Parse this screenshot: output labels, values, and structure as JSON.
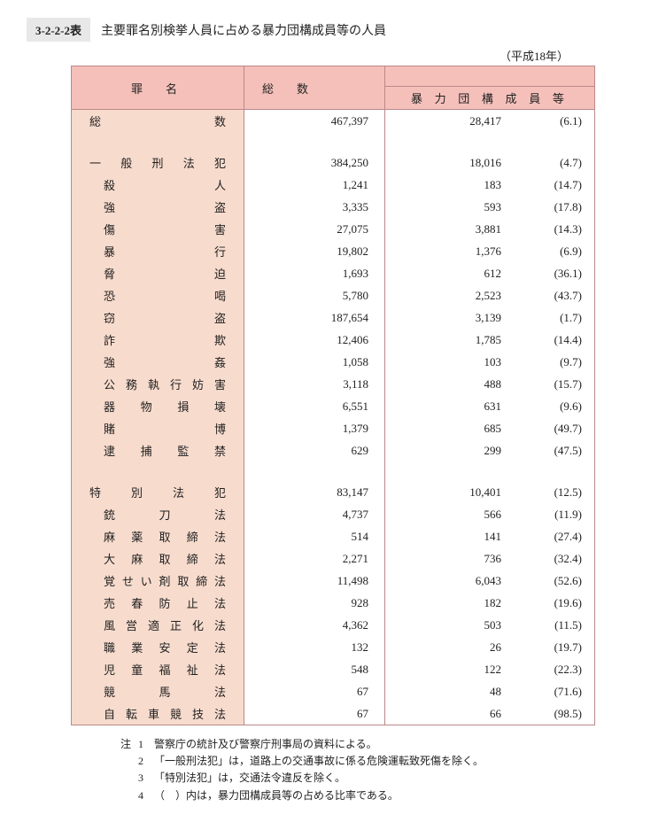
{
  "title_tag": "3-2-2-2表",
  "title_text": "主要罪名別検挙人員に占める暴力団構成員等の人員",
  "year_note": "（平成18年）",
  "header": {
    "crime": "罪名",
    "total_group": "総数",
    "gang": "暴 力 団 構 成 員 等"
  },
  "colors": {
    "header_bg": "#f5c0ba",
    "label_bg": "#f7dbcd",
    "border": "#b88"
  },
  "rows": [
    {
      "type": "data",
      "indent": 0,
      "label": "総数",
      "total": "467,397",
      "gang": "28,417",
      "pct": "(6.1)"
    },
    {
      "type": "spacer"
    },
    {
      "type": "data",
      "indent": 0,
      "label": "一般刑法犯",
      "total": "384,250",
      "gang": "18,016",
      "pct": "(4.7)"
    },
    {
      "type": "data",
      "indent": 1,
      "label": "殺人",
      "total": "1,241",
      "gang": "183",
      "pct": "(14.7)"
    },
    {
      "type": "data",
      "indent": 1,
      "label": "強盗",
      "total": "3,335",
      "gang": "593",
      "pct": "(17.8)"
    },
    {
      "type": "data",
      "indent": 1,
      "label": "傷害",
      "total": "27,075",
      "gang": "3,881",
      "pct": "(14.3)"
    },
    {
      "type": "data",
      "indent": 1,
      "label": "暴行",
      "total": "19,802",
      "gang": "1,376",
      "pct": "(6.9)"
    },
    {
      "type": "data",
      "indent": 1,
      "label": "脅迫",
      "total": "1,693",
      "gang": "612",
      "pct": "(36.1)"
    },
    {
      "type": "data",
      "indent": 1,
      "label": "恐喝",
      "total": "5,780",
      "gang": "2,523",
      "pct": "(43.7)"
    },
    {
      "type": "data",
      "indent": 1,
      "label": "窃盗",
      "total": "187,654",
      "gang": "3,139",
      "pct": "(1.7)"
    },
    {
      "type": "data",
      "indent": 1,
      "label": "詐欺",
      "total": "12,406",
      "gang": "1,785",
      "pct": "(14.4)"
    },
    {
      "type": "data",
      "indent": 1,
      "label": "強姦",
      "total": "1,058",
      "gang": "103",
      "pct": "(9.7)"
    },
    {
      "type": "data",
      "indent": 1,
      "label": "公務執行妨害",
      "total": "3,118",
      "gang": "488",
      "pct": "(15.7)"
    },
    {
      "type": "data",
      "indent": 1,
      "label": "器物損壊",
      "total": "6,551",
      "gang": "631",
      "pct": "(9.6)"
    },
    {
      "type": "data",
      "indent": 1,
      "label": "賭博",
      "total": "1,379",
      "gang": "685",
      "pct": "(49.7)"
    },
    {
      "type": "data",
      "indent": 1,
      "label": "逮捕監禁",
      "total": "629",
      "gang": "299",
      "pct": "(47.5)"
    },
    {
      "type": "spacer"
    },
    {
      "type": "data",
      "indent": 0,
      "label": "特別法犯",
      "total": "83,147",
      "gang": "10,401",
      "pct": "(12.5)"
    },
    {
      "type": "data",
      "indent": 1,
      "label": "銃刀法",
      "total": "4,737",
      "gang": "566",
      "pct": "(11.9)"
    },
    {
      "type": "data",
      "indent": 1,
      "label": "麻薬取締法",
      "total": "514",
      "gang": "141",
      "pct": "(27.4)"
    },
    {
      "type": "data",
      "indent": 1,
      "label": "大麻取締法",
      "total": "2,271",
      "gang": "736",
      "pct": "(32.4)"
    },
    {
      "type": "data",
      "indent": 1,
      "label": "覚せい剤取締法",
      "total": "11,498",
      "gang": "6,043",
      "pct": "(52.6)"
    },
    {
      "type": "data",
      "indent": 1,
      "label": "売春防止法",
      "total": "928",
      "gang": "182",
      "pct": "(19.6)"
    },
    {
      "type": "data",
      "indent": 1,
      "label": "風営適正化法",
      "total": "4,362",
      "gang": "503",
      "pct": "(11.5)"
    },
    {
      "type": "data",
      "indent": 1,
      "label": "職業安定法",
      "total": "132",
      "gang": "26",
      "pct": "(19.7)"
    },
    {
      "type": "data",
      "indent": 1,
      "label": "児童福祉法",
      "total": "548",
      "gang": "122",
      "pct": "(22.3)"
    },
    {
      "type": "data",
      "indent": 1,
      "label": "競馬法",
      "total": "67",
      "gang": "48",
      "pct": "(71.6)"
    },
    {
      "type": "data",
      "indent": 1,
      "label": "自転車競技法",
      "total": "67",
      "gang": "66",
      "pct": "(98.5)"
    }
  ],
  "notes": {
    "lead": "注",
    "items": [
      "警察庁の統計及び警察庁刑事局の資料による。",
      "「一般刑法犯」は，道路上の交通事故に係る危険運転致死傷を除く。",
      "「特別法犯」は，交通法令違反を除く。",
      "（　）内は，暴力団構成員等の占める比率である。"
    ]
  }
}
